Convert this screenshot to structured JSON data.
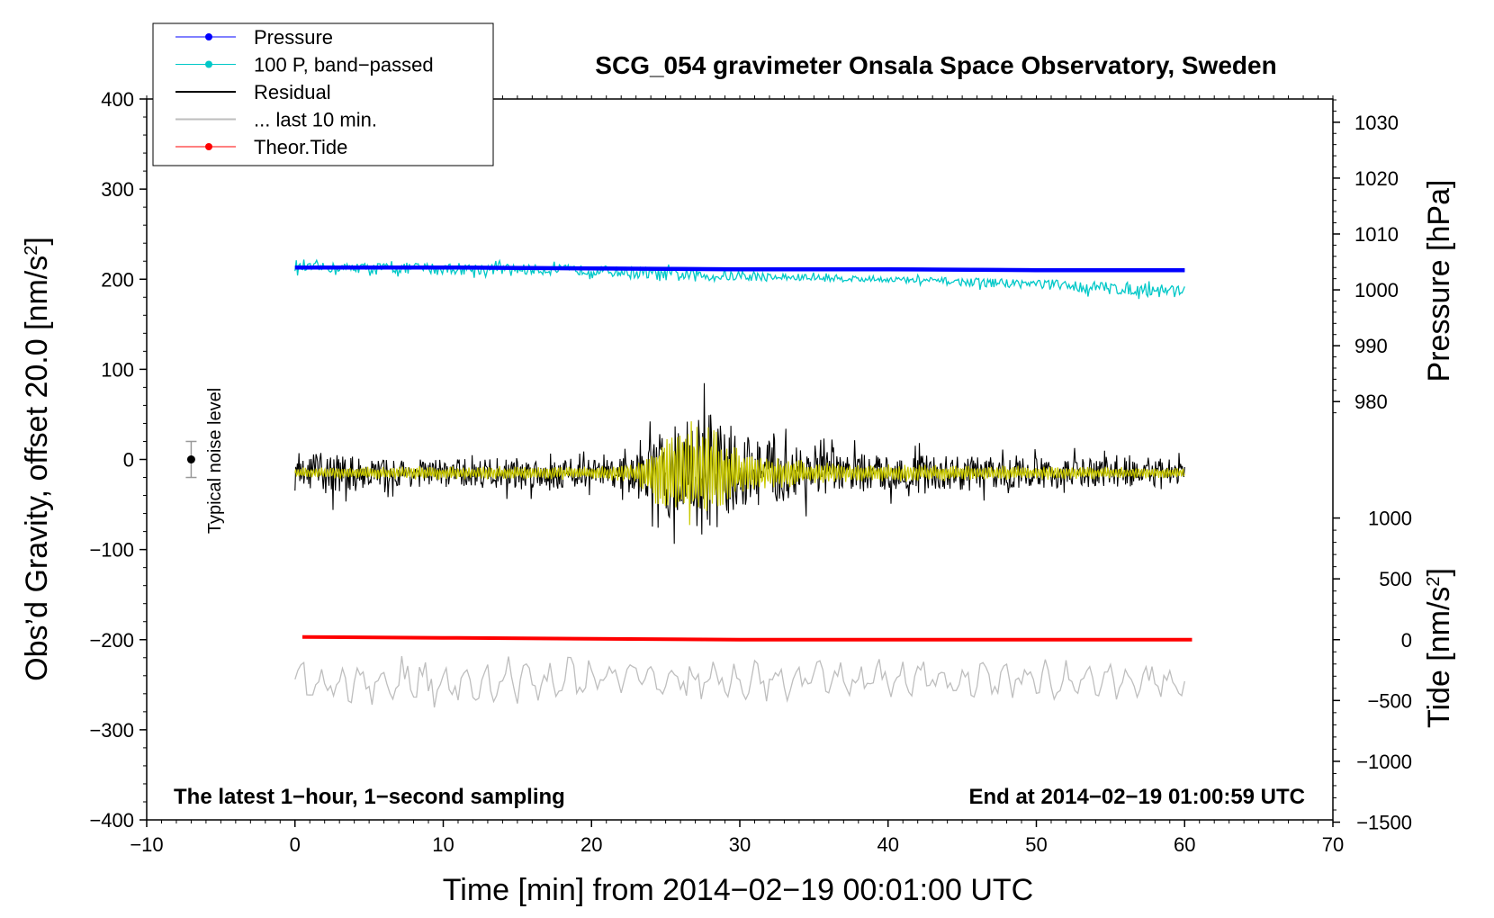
{
  "chart_data": {
    "type": "line",
    "title": "SCG_054 gravimeter Onsala Space Observatory, Sweden",
    "xlabel": "Time [min] from 2014−02−19 00:01:00 UTC",
    "ylabel": "Obs’d Gravity, offset 20.0 [nm/s",
    "ylabel_sup": "2",
    "ylabel_end": "]",
    "y2label": "Pressure [hPa]",
    "y3label": "Tide [nm/s",
    "y3label_sup": "2",
    "y3label_end": "]",
    "xlim": [
      -10,
      70
    ],
    "ylim": [
      -400,
      400
    ],
    "x_ticks": [
      -10,
      0,
      10,
      20,
      30,
      40,
      50,
      60,
      70
    ],
    "x_tick_labels": [
      "−10",
      "0",
      "10",
      "20",
      "30",
      "40",
      "50",
      "60",
      "70"
    ],
    "y_ticks": [
      400,
      300,
      200,
      100,
      0,
      -100,
      -200,
      -300,
      -400
    ],
    "y_tick_labels": [
      "400",
      "300",
      "200",
      "100",
      "0",
      "−100",
      "−200",
      "−300",
      "−400"
    ],
    "pressure_ticks": [
      1030,
      1020,
      1010,
      1000,
      990,
      980
    ],
    "pressure_tick_labels": [
      "1030",
      "1020",
      "1010",
      "1000",
      "990",
      "980"
    ],
    "tide_ticks": [
      1000,
      500,
      0,
      -500,
      -1000,
      -1500
    ],
    "tide_tick_labels": [
      "1000",
      "500",
      "0",
      "−500",
      "−1000",
      "−1500"
    ],
    "note_left": "The latest 1−hour, 1−second sampling",
    "note_right": "End at 2014−02−19 01:00:59 UTC",
    "noise_label": "Typical noise level",
    "noise_bar": {
      "x": -7,
      "center": 0,
      "halfwidth": 20
    },
    "legend": [
      {
        "label": "Pressure",
        "color": "#0000ff",
        "marker": true
      },
      {
        "label": "100 P, band−passed",
        "color": "#00c8c8",
        "marker": true
      },
      {
        "label": "Residual",
        "color": "#000000",
        "marker": false
      },
      {
        "label": "... last 10 min.",
        "color": "#bebebe",
        "marker": false
      },
      {
        "label": "Theor.Tide",
        "color": "#ff0000",
        "marker": true
      }
    ],
    "series": [
      {
        "name": "Pressure",
        "color": "#0000ff",
        "x": [
          0,
          10,
          20,
          30,
          40,
          50,
          60
        ],
        "y": [
          213,
          213,
          212,
          211,
          211,
          210,
          210
        ]
      },
      {
        "name": "100 P, band-passed",
        "color": "#00c8c8",
        "x": [
          0,
          10,
          20,
          25,
          30,
          40,
          45,
          50,
          55,
          60
        ],
        "y": [
          213,
          212,
          210,
          205,
          203,
          200,
          197,
          195,
          190,
          188
        ],
        "spread": [
          9,
          12,
          10,
          14,
          9,
          6,
          8,
          10,
          13,
          11
        ]
      },
      {
        "name": "Residual",
        "color": "#000000",
        "x": [
          0,
          2,
          5,
          10,
          15,
          20,
          23,
          25,
          27,
          28,
          30,
          32,
          35,
          40,
          45,
          50,
          55,
          60
        ],
        "y": [
          -15,
          -15,
          -15,
          -15,
          -15,
          -15,
          -15,
          -15,
          -15,
          -15,
          -15,
          -15,
          -15,
          -15,
          -15,
          -15,
          -15,
          -15
        ],
        "spread": [
          20,
          45,
          28,
          28,
          32,
          28,
          35,
          90,
          130,
          120,
          75,
          70,
          45,
          35,
          35,
          30,
          28,
          22
        ]
      },
      {
        "name": "Residual band-passed",
        "color": "#c8c800",
        "x": [
          0,
          10,
          20,
          23,
          25,
          27,
          28,
          30,
          32,
          35,
          40,
          50,
          60
        ],
        "y": [
          -15,
          -15,
          -15,
          -15,
          -15,
          -15,
          -15,
          -15,
          -15,
          -15,
          -15,
          -15,
          -15
        ],
        "spread": [
          6,
          8,
          8,
          10,
          55,
          65,
          60,
          25,
          20,
          12,
          10,
          8,
          6
        ]
      },
      {
        "name": "... last 10 min.",
        "color": "#bebebe",
        "x": [
          0,
          10,
          20,
          30,
          40,
          50,
          60
        ],
        "y": [
          -245,
          -248,
          -243,
          -246,
          -244,
          -245,
          -246
        ],
        "spread": [
          25,
          28,
          22,
          20,
          20,
          20,
          18
        ]
      },
      {
        "name": "Theor.Tide",
        "color": "#ff0000",
        "x": [
          0.5,
          10,
          20,
          30,
          40,
          50,
          60.5
        ],
        "y": [
          -197,
          -198,
          -199,
          -200,
          -200,
          -200,
          -200
        ]
      }
    ]
  }
}
